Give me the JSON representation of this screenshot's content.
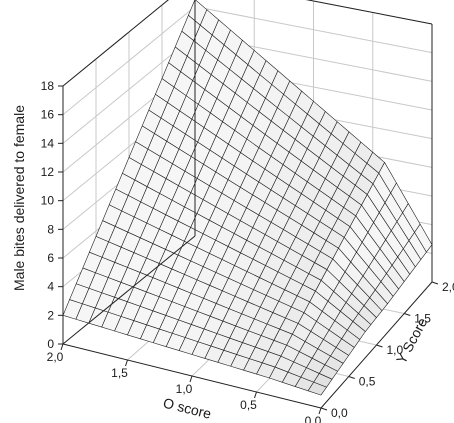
{
  "chart_data": {
    "type": "surface",
    "title": "",
    "zlabel": "Male bites delivered to female",
    "xlabel": "O score",
    "ylabel": "Y Score",
    "x_ticks": [
      "2,0",
      "1,5",
      "1,0",
      "0,5",
      "0,0"
    ],
    "y_ticks": [
      "0,0",
      "0,5",
      "1,0",
      "1,5",
      "2,0"
    ],
    "z_ticks": [
      "0",
      "2",
      "4",
      "6",
      "8",
      "10",
      "12",
      "14",
      "16",
      "18"
    ],
    "xlim": [
      0,
      2
    ],
    "ylim": [
      0,
      2
    ],
    "zlim": [
      0,
      18
    ],
    "grid": true,
    "surface_corners": [
      {
        "o": 2.0,
        "y": 0.0,
        "z": 2.0
      },
      {
        "o": 0.0,
        "y": 0.0,
        "z": 0.9
      },
      {
        "o": 2.0,
        "y": 2.0,
        "z": 16.5
      },
      {
        "o": 0.0,
        "y": 2.0,
        "z": 2.6
      }
    ],
    "surface_z": [
      [
        2.0,
        1.8,
        1.6,
        1.4,
        1.2,
        0.9
      ],
      [
        4.9,
        4.33,
        3.73,
        3.13,
        2.55,
        1.36
      ],
      [
        7.8,
        6.8,
        5.82,
        4.84,
        3.85,
        1.82
      ],
      [
        10.7,
        9.3,
        7.9,
        6.53,
        5.14,
        2.0
      ],
      [
        13.6,
        11.8,
        9.98,
        8.2,
        6.43,
        2.3
      ],
      [
        16.5,
        14.3,
        12.1,
        9.9,
        7.7,
        2.6
      ]
    ],
    "surface_z_axes": {
      "rows": "Y score 0.0 to 2.0",
      "columns": "O score 2.0 to 0.0"
    }
  }
}
